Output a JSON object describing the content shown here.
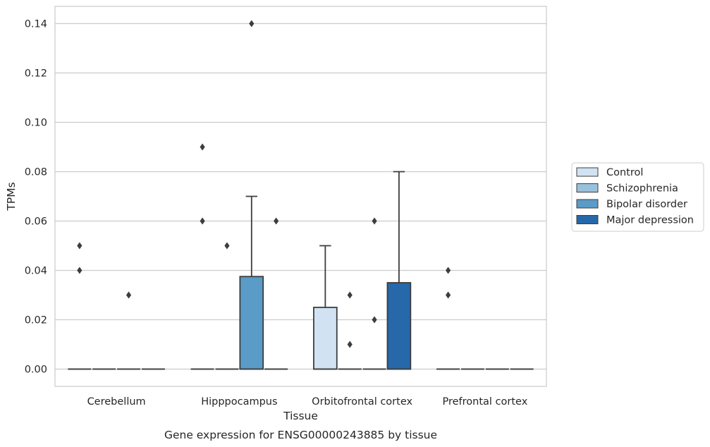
{
  "chart_data": {
    "type": "box",
    "title": "Gene expression for ENSG00000243885 by tissue",
    "xlabel": "Tissue",
    "ylabel": "TPMs",
    "ylim": [
      -0.007,
      0.147
    ],
    "yticks": [
      0.0,
      0.02,
      0.04,
      0.06,
      0.08,
      0.1,
      0.12,
      0.14
    ],
    "ytick_labels": [
      "0.00",
      "0.02",
      "0.04",
      "0.06",
      "0.08",
      "0.10",
      "0.12",
      "0.14"
    ],
    "categories": [
      "Cerebellum",
      "Hipppocampus",
      "Orbitofrontal cortex",
      "Prefrontal cortex"
    ],
    "grid": "horizontal",
    "legend_position": "right",
    "series": [
      {
        "name": "Control",
        "color": "#d1e2f2",
        "boxes": [
          {
            "q1": 0.0,
            "median": 0.0,
            "q3": 0.0,
            "whisker_low": 0.0,
            "whisker_high": 0.0,
            "outliers": [
              0.04,
              0.05
            ]
          },
          {
            "q1": 0.0,
            "median": 0.0,
            "q3": 0.0,
            "whisker_low": 0.0,
            "whisker_high": 0.0,
            "outliers": [
              0.06,
              0.09
            ]
          },
          {
            "q1": 0.0,
            "median": 0.0,
            "q3": 0.025,
            "whisker_low": 0.0,
            "whisker_high": 0.05,
            "outliers": []
          },
          {
            "q1": 0.0,
            "median": 0.0,
            "q3": 0.0,
            "whisker_low": 0.0,
            "whisker_high": 0.0,
            "outliers": [
              0.03,
              0.04
            ]
          }
        ]
      },
      {
        "name": "Schizophrenia",
        "color": "#9ac1dc",
        "boxes": [
          {
            "q1": 0.0,
            "median": 0.0,
            "q3": 0.0,
            "whisker_low": 0.0,
            "whisker_high": 0.0,
            "outliers": []
          },
          {
            "q1": 0.0,
            "median": 0.0,
            "q3": 0.0,
            "whisker_low": 0.0,
            "whisker_high": 0.0,
            "outliers": [
              0.05
            ]
          },
          {
            "q1": 0.0,
            "median": 0.0,
            "q3": 0.0,
            "whisker_low": 0.0,
            "whisker_high": 0.0,
            "outliers": [
              0.01,
              0.03
            ]
          },
          {
            "q1": 0.0,
            "median": 0.0,
            "q3": 0.0,
            "whisker_low": 0.0,
            "whisker_high": 0.0,
            "outliers": []
          }
        ]
      },
      {
        "name": "Bipolar disorder",
        "color": "#5a9bc8",
        "boxes": [
          {
            "q1": 0.0,
            "median": 0.0,
            "q3": 0.0,
            "whisker_low": 0.0,
            "whisker_high": 0.0,
            "outliers": [
              0.03
            ]
          },
          {
            "q1": 0.0,
            "median": 0.0,
            "q3": 0.0375,
            "whisker_low": 0.0,
            "whisker_high": 0.07,
            "outliers": [
              0.14
            ]
          },
          {
            "q1": 0.0,
            "median": 0.0,
            "q3": 0.0,
            "whisker_low": 0.0,
            "whisker_high": 0.0,
            "outliers": [
              0.02,
              0.06
            ]
          },
          {
            "q1": 0.0,
            "median": 0.0,
            "q3": 0.0,
            "whisker_low": 0.0,
            "whisker_high": 0.0,
            "outliers": []
          }
        ]
      },
      {
        "name": "Major depression",
        "color": "#2668a9",
        "boxes": [
          {
            "q1": 0.0,
            "median": 0.0,
            "q3": 0.0,
            "whisker_low": 0.0,
            "whisker_high": 0.0,
            "outliers": []
          },
          {
            "q1": 0.0,
            "median": 0.0,
            "q3": 0.0,
            "whisker_low": 0.0,
            "whisker_high": 0.0,
            "outliers": [
              0.06
            ]
          },
          {
            "q1": 0.0,
            "median": 0.0,
            "q3": 0.035,
            "whisker_low": 0.0,
            "whisker_high": 0.08,
            "outliers": []
          },
          {
            "q1": 0.0,
            "median": 0.0,
            "q3": 0.0,
            "whisker_low": 0.0,
            "whisker_high": 0.0,
            "outliers": []
          }
        ]
      }
    ]
  }
}
